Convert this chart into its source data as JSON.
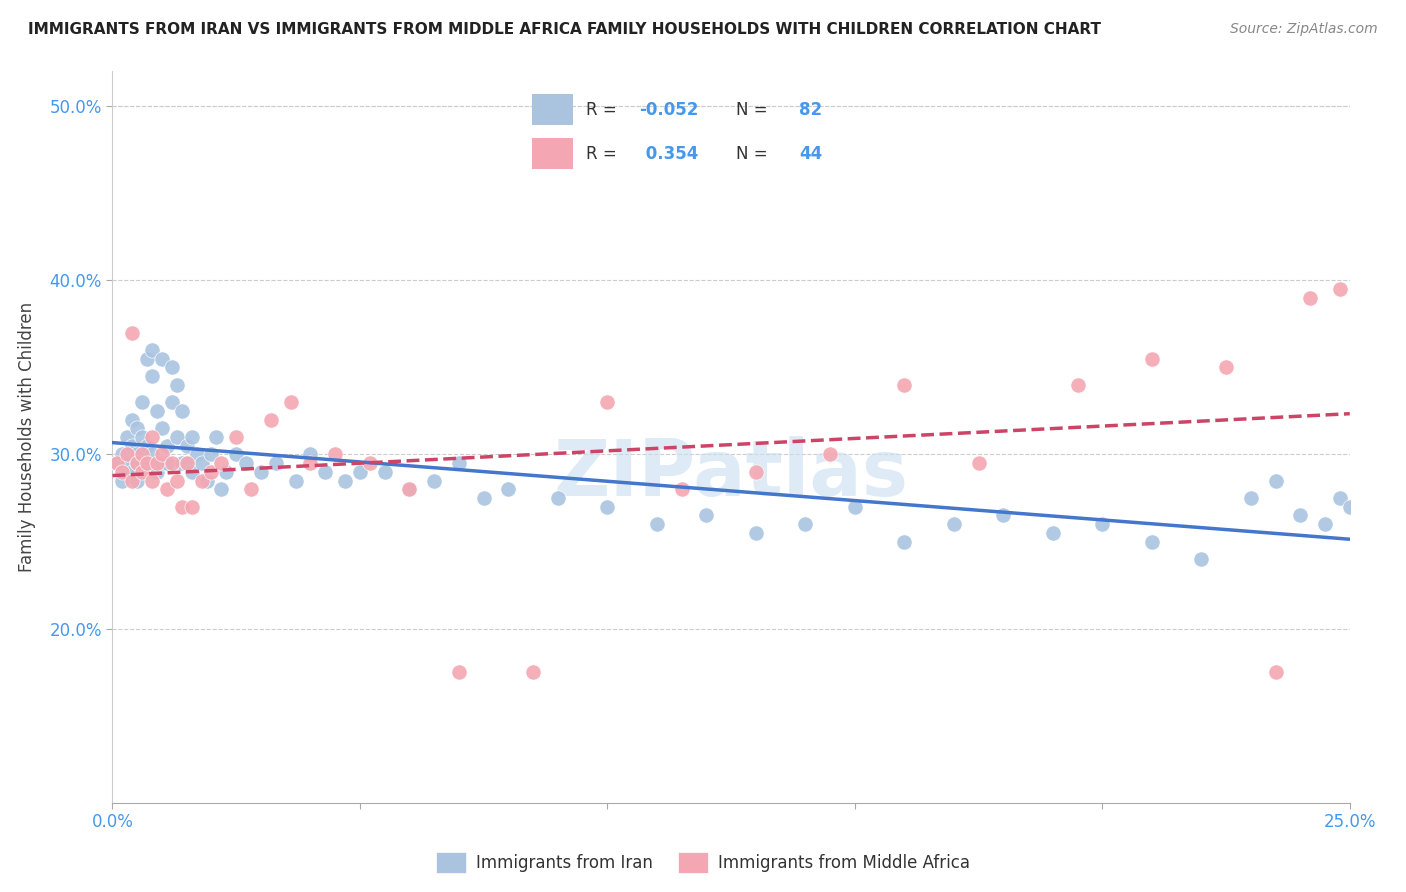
{
  "title": "IMMIGRANTS FROM IRAN VS IMMIGRANTS FROM MIDDLE AFRICA FAMILY HOUSEHOLDS WITH CHILDREN CORRELATION CHART",
  "source": "Source: ZipAtlas.com",
  "ylabel": "Family Households with Children",
  "xlim": [
    0.0,
    0.25
  ],
  "ylim": [
    0.1,
    0.52
  ],
  "xticks": [
    0.0,
    0.05,
    0.1,
    0.15,
    0.2,
    0.25
  ],
  "xticklabels": [
    "0.0%",
    "",
    "",
    "",
    "",
    "25.0%"
  ],
  "yticks": [
    0.2,
    0.3,
    0.4,
    0.5
  ],
  "yticklabels": [
    "20.0%",
    "30.0%",
    "40.0%",
    "50.0%"
  ],
  "blue_R": "-0.052",
  "blue_N": "82",
  "pink_R": "0.354",
  "pink_N": "44",
  "blue_color": "#aac4e0",
  "pink_color": "#f4a7b2",
  "blue_line_color": "#4477cc",
  "pink_line_color": "#cc4466",
  "grid_color": "#cccccc",
  "watermark": "ZIPatlas",
  "watermark_color": "#c8dff0",
  "blue_scatter_x": [
    0.001,
    0.002,
    0.002,
    0.003,
    0.003,
    0.003,
    0.004,
    0.004,
    0.004,
    0.005,
    0.005,
    0.005,
    0.005,
    0.006,
    0.006,
    0.006,
    0.007,
    0.007,
    0.007,
    0.008,
    0.008,
    0.008,
    0.009,
    0.009,
    0.01,
    0.01,
    0.01,
    0.011,
    0.011,
    0.012,
    0.012,
    0.013,
    0.013,
    0.014,
    0.014,
    0.015,
    0.015,
    0.016,
    0.016,
    0.017,
    0.018,
    0.019,
    0.02,
    0.021,
    0.022,
    0.023,
    0.025,
    0.027,
    0.03,
    0.033,
    0.037,
    0.04,
    0.043,
    0.047,
    0.05,
    0.055,
    0.06,
    0.065,
    0.07,
    0.075,
    0.08,
    0.09,
    0.1,
    0.11,
    0.12,
    0.13,
    0.14,
    0.15,
    0.16,
    0.17,
    0.18,
    0.19,
    0.2,
    0.21,
    0.22,
    0.23,
    0.235,
    0.24,
    0.245,
    0.248,
    0.25,
    0.252
  ],
  "blue_scatter_y": [
    0.295,
    0.285,
    0.3,
    0.29,
    0.31,
    0.295,
    0.305,
    0.32,
    0.29,
    0.3,
    0.315,
    0.295,
    0.285,
    0.31,
    0.295,
    0.33,
    0.355,
    0.295,
    0.305,
    0.3,
    0.345,
    0.36,
    0.29,
    0.325,
    0.295,
    0.355,
    0.315,
    0.305,
    0.295,
    0.35,
    0.33,
    0.31,
    0.34,
    0.295,
    0.325,
    0.305,
    0.295,
    0.31,
    0.29,
    0.3,
    0.295,
    0.285,
    0.3,
    0.31,
    0.28,
    0.29,
    0.3,
    0.295,
    0.29,
    0.295,
    0.285,
    0.3,
    0.29,
    0.285,
    0.29,
    0.29,
    0.28,
    0.285,
    0.295,
    0.275,
    0.28,
    0.275,
    0.27,
    0.26,
    0.265,
    0.255,
    0.26,
    0.27,
    0.25,
    0.26,
    0.265,
    0.255,
    0.26,
    0.25,
    0.24,
    0.275,
    0.285,
    0.265,
    0.26,
    0.275,
    0.27,
    0.265
  ],
  "pink_scatter_x": [
    0.001,
    0.002,
    0.003,
    0.004,
    0.004,
    0.005,
    0.006,
    0.006,
    0.007,
    0.008,
    0.008,
    0.009,
    0.01,
    0.011,
    0.012,
    0.013,
    0.014,
    0.015,
    0.016,
    0.018,
    0.02,
    0.022,
    0.025,
    0.028,
    0.032,
    0.036,
    0.04,
    0.045,
    0.052,
    0.06,
    0.07,
    0.085,
    0.1,
    0.115,
    0.13,
    0.145,
    0.16,
    0.175,
    0.195,
    0.21,
    0.225,
    0.235,
    0.242,
    0.248
  ],
  "pink_scatter_y": [
    0.295,
    0.29,
    0.3,
    0.285,
    0.37,
    0.295,
    0.3,
    0.29,
    0.295,
    0.31,
    0.285,
    0.295,
    0.3,
    0.28,
    0.295,
    0.285,
    0.27,
    0.295,
    0.27,
    0.285,
    0.29,
    0.295,
    0.31,
    0.28,
    0.32,
    0.33,
    0.295,
    0.3,
    0.295,
    0.28,
    0.175,
    0.175,
    0.33,
    0.28,
    0.29,
    0.3,
    0.34,
    0.295,
    0.34,
    0.355,
    0.35,
    0.175,
    0.39,
    0.395
  ]
}
